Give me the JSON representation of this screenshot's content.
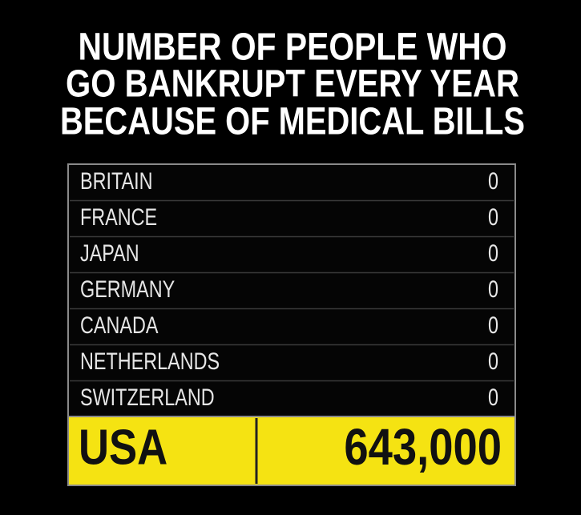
{
  "title": {
    "lines": [
      "NUMBER OF PEOPLE WHO",
      "GO BANKRUPT EVERY YEAR",
      "BECAUSE OF MEDICAL BILLS"
    ]
  },
  "table": {
    "rows": [
      [
        "BRITAIN",
        "0"
      ],
      [
        "FRANCE",
        "0"
      ],
      [
        "JAPAN",
        "0"
      ],
      [
        "GERMANY",
        "0"
      ],
      [
        "CANADA",
        "0"
      ],
      [
        "NETHERLANDS",
        "0"
      ],
      [
        "SWITZERLAND",
        "0"
      ],
      [
        "USA",
        "643,000"
      ]
    ]
  }
}
